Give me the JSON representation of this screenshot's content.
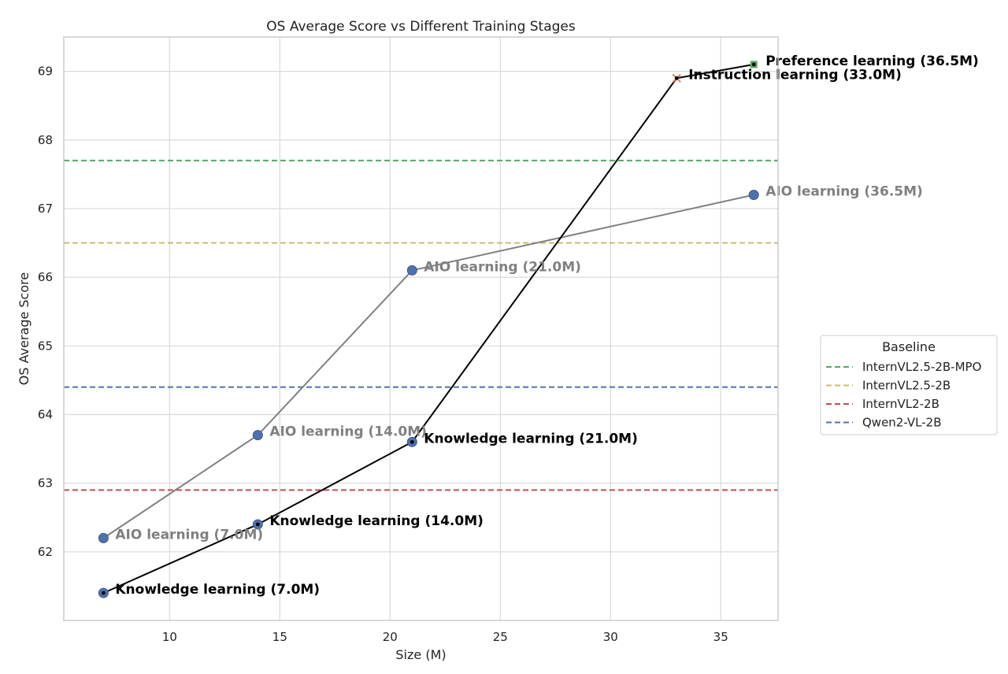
{
  "chart_data": {
    "type": "line",
    "title": "OS Average Score vs Different Training Stages",
    "xlabel": "Size (M)",
    "ylabel": "OS Average Score",
    "xlim": [
      5.2,
      37.6
    ],
    "ylim": [
      61.0,
      69.5
    ],
    "xticks": [
      10,
      15,
      20,
      25,
      30,
      35
    ],
    "yticks": [
      62,
      63,
      64,
      65,
      66,
      67,
      68,
      69
    ],
    "grid": true,
    "series": [
      {
        "color": "#808080",
        "points": [
          {
            "x": 7.0,
            "y": 62.2,
            "label": "AIO learning (7.0M)"
          },
          {
            "x": 14.0,
            "y": 63.7,
            "label": "AIO learning (14.0M)"
          },
          {
            "x": 21.0,
            "y": 66.1,
            "label": "AIO learning (21.0M)"
          },
          {
            "x": 36.5,
            "y": 67.2,
            "label": "AIO learning (36.5M)"
          }
        ]
      },
      {
        "color": "#000000",
        "points": [
          {
            "x": 7.0,
            "y": 61.4,
            "label": "Knowledge learning (7.0M)",
            "marker": "circle"
          },
          {
            "x": 14.0,
            "y": 62.4,
            "label": "Knowledge learning (14.0M)",
            "marker": "circle"
          },
          {
            "x": 21.0,
            "y": 63.6,
            "label": "Knowledge learning (21.0M)",
            "marker": "circle"
          },
          {
            "x": 33.0,
            "y": 68.9,
            "label": "Instruction learning (33.0M)",
            "marker": "x"
          },
          {
            "x": 36.5,
            "y": 69.1,
            "label": "Preference learning (36.5M)",
            "marker": "square"
          }
        ]
      }
    ],
    "baselines": [
      {
        "name": "InternVL2.5-2B-MPO",
        "y": 67.7,
        "color": "#55a868"
      },
      {
        "name": "InternVL2.5-2B",
        "y": 66.5,
        "color": "#ccb974"
      },
      {
        "name": "InternVL2-2B",
        "y": 62.9,
        "color": "#c44e52"
      },
      {
        "name": "Qwen2-VL-2B",
        "y": 64.4,
        "color": "#4c72b0"
      }
    ],
    "legend": {
      "title": "Baseline",
      "placement": "right"
    }
  }
}
